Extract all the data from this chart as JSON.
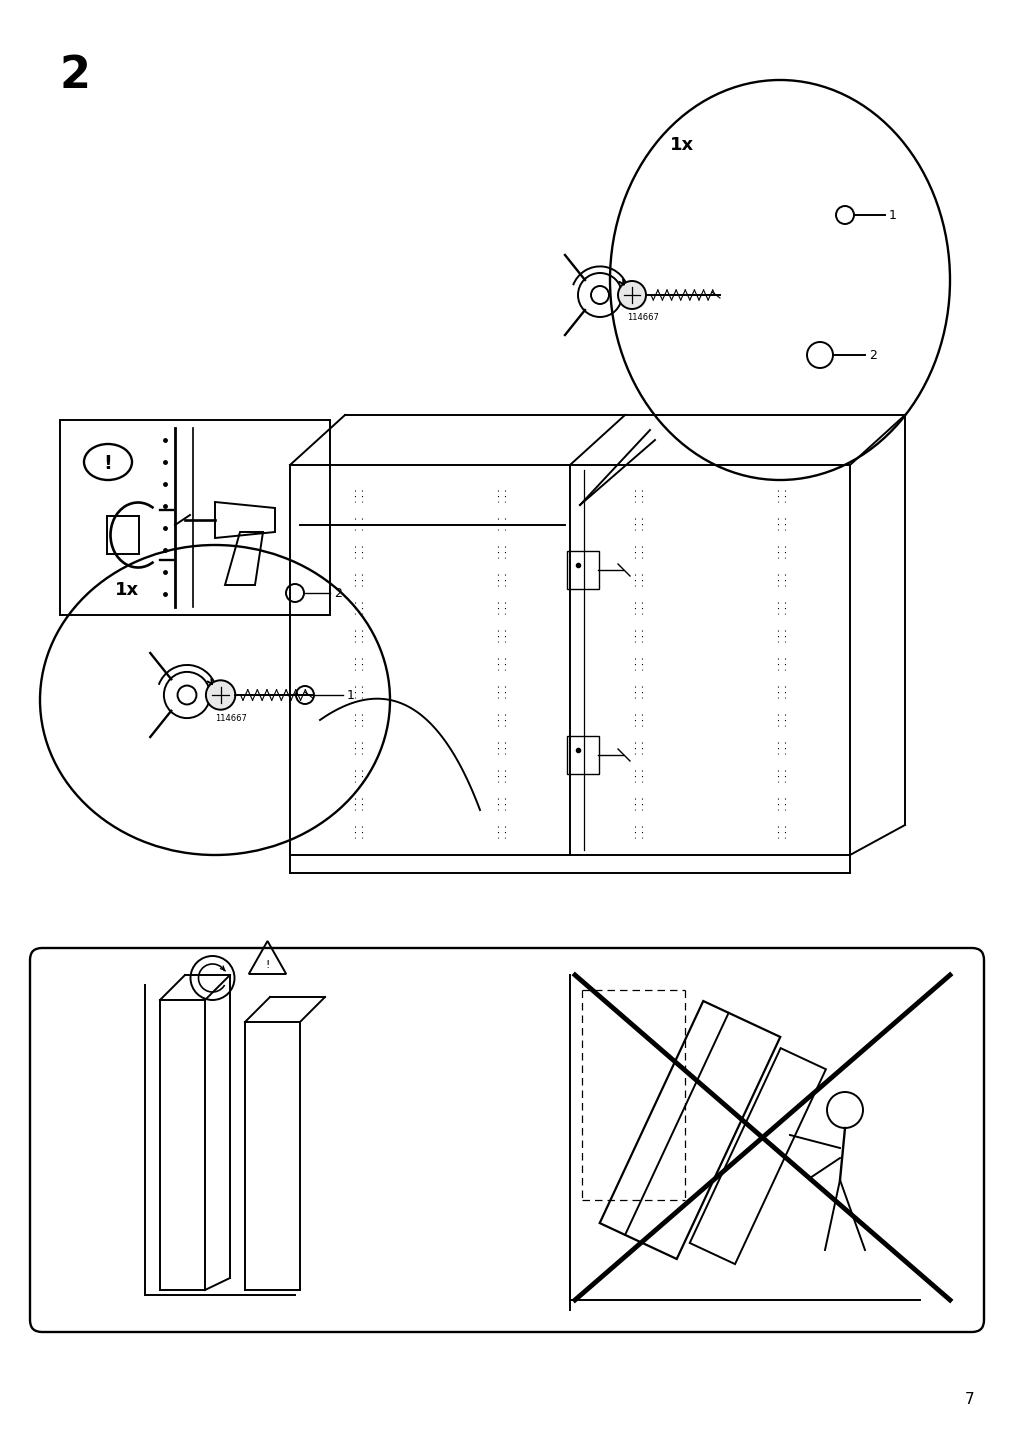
{
  "page_number": "7",
  "step_number": "2",
  "bg_color": "#ffffff",
  "line_color": "#000000",
  "fig_width": 10.12,
  "fig_height": 14.32,
  "title_fontsize": 32,
  "page_num_fontsize": 11
}
